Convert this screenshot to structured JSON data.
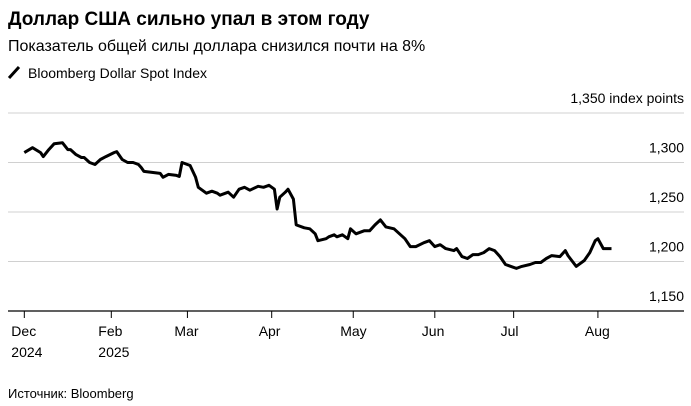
{
  "chart_data": {
    "type": "line",
    "title": "Доллар США сильно упал в этом году",
    "subtitle": "Показатель общей силы доллара снизился почти на 8%",
    "source": "Источник: Bloomberg",
    "x": [
      0,
      3,
      6,
      7,
      9,
      11,
      14,
      16,
      17,
      19,
      21,
      22,
      24,
      26,
      28,
      30,
      33,
      34,
      36,
      38,
      40,
      42,
      43,
      44,
      47,
      50,
      51,
      53,
      56,
      57,
      58,
      61,
      63,
      64,
      67,
      69,
      71,
      72,
      75,
      77,
      79,
      81,
      83,
      86,
      88,
      90,
      92,
      93,
      94,
      96,
      97,
      99,
      100,
      103,
      105,
      107,
      108,
      111,
      112,
      114,
      115,
      117,
      119,
      120,
      122,
      125,
      127,
      129,
      131,
      133,
      136,
      138,
      140,
      142,
      144,
      147,
      149,
      151,
      153,
      155,
      158,
      159,
      161,
      163,
      165,
      167,
      169,
      171,
      173,
      175,
      177,
      179,
      181,
      183,
      186,
      188,
      190,
      192,
      194,
      197,
      199,
      200,
      203,
      206,
      208,
      210,
      211,
      213,
      216
    ],
    "series": [
      {
        "name": "Bloomberg Dollar Spot Index",
        "color": "#000000",
        "values": [
          1310,
          1315,
          1310,
          1306,
          1313,
          1319,
          1320,
          1313,
          1313,
          1308,
          1305,
          1305,
          1300,
          1298,
          1303,
          1306,
          1310,
          1311,
          1303,
          1300,
          1300,
          1298,
          1295,
          1291,
          1290,
          1289,
          1285,
          1288,
          1287,
          1286,
          1300,
          1297,
          1285,
          1275,
          1269,
          1271,
          1269,
          1267,
          1270,
          1265,
          1273,
          1275,
          1272,
          1276,
          1275,
          1277,
          1273,
          1253,
          1265,
          1270,
          1273,
          1263,
          1237,
          1234,
          1233,
          1228,
          1221,
          1223,
          1225,
          1227,
          1225,
          1227,
          1223,
          1233,
          1228,
          1231,
          1231,
          1237,
          1242,
          1235,
          1233,
          1228,
          1223,
          1215,
          1215,
          1219,
          1221,
          1215,
          1217,
          1213,
          1211,
          1213,
          1205,
          1203,
          1207,
          1207,
          1209,
          1213,
          1211,
          1205,
          1197,
          1195,
          1193,
          1195,
          1197,
          1199,
          1199,
          1203,
          1206,
          1205,
          1211,
          1206,
          1195,
          1201,
          1209,
          1221,
          1223,
          1213,
          1213
        ]
      }
    ],
    "xlim": [
      -6,
      232
    ],
    "xticks": [
      {
        "value": 0,
        "label": "Dec\n2024"
      },
      {
        "value": 32,
        "label": "Feb\n2025"
      },
      {
        "value": 60,
        "label": "Mar"
      },
      {
        "value": 91,
        "label": "Apr"
      },
      {
        "value": 121,
        "label": "May"
      },
      {
        "value": 151,
        "label": "Jun"
      },
      {
        "value": 180,
        "label": "Jul"
      },
      {
        "value": 211,
        "label": "Aug"
      }
    ],
    "ylim": [
      1150,
      1350
    ],
    "yticks": [
      {
        "value": 1150,
        "label": "1,150"
      },
      {
        "value": 1200,
        "label": "1,200"
      },
      {
        "value": 1250,
        "label": "1,250"
      },
      {
        "value": 1300,
        "label": "1,300"
      },
      {
        "value": 1350,
        "label": "1,350 index points"
      }
    ],
    "grid": true
  }
}
